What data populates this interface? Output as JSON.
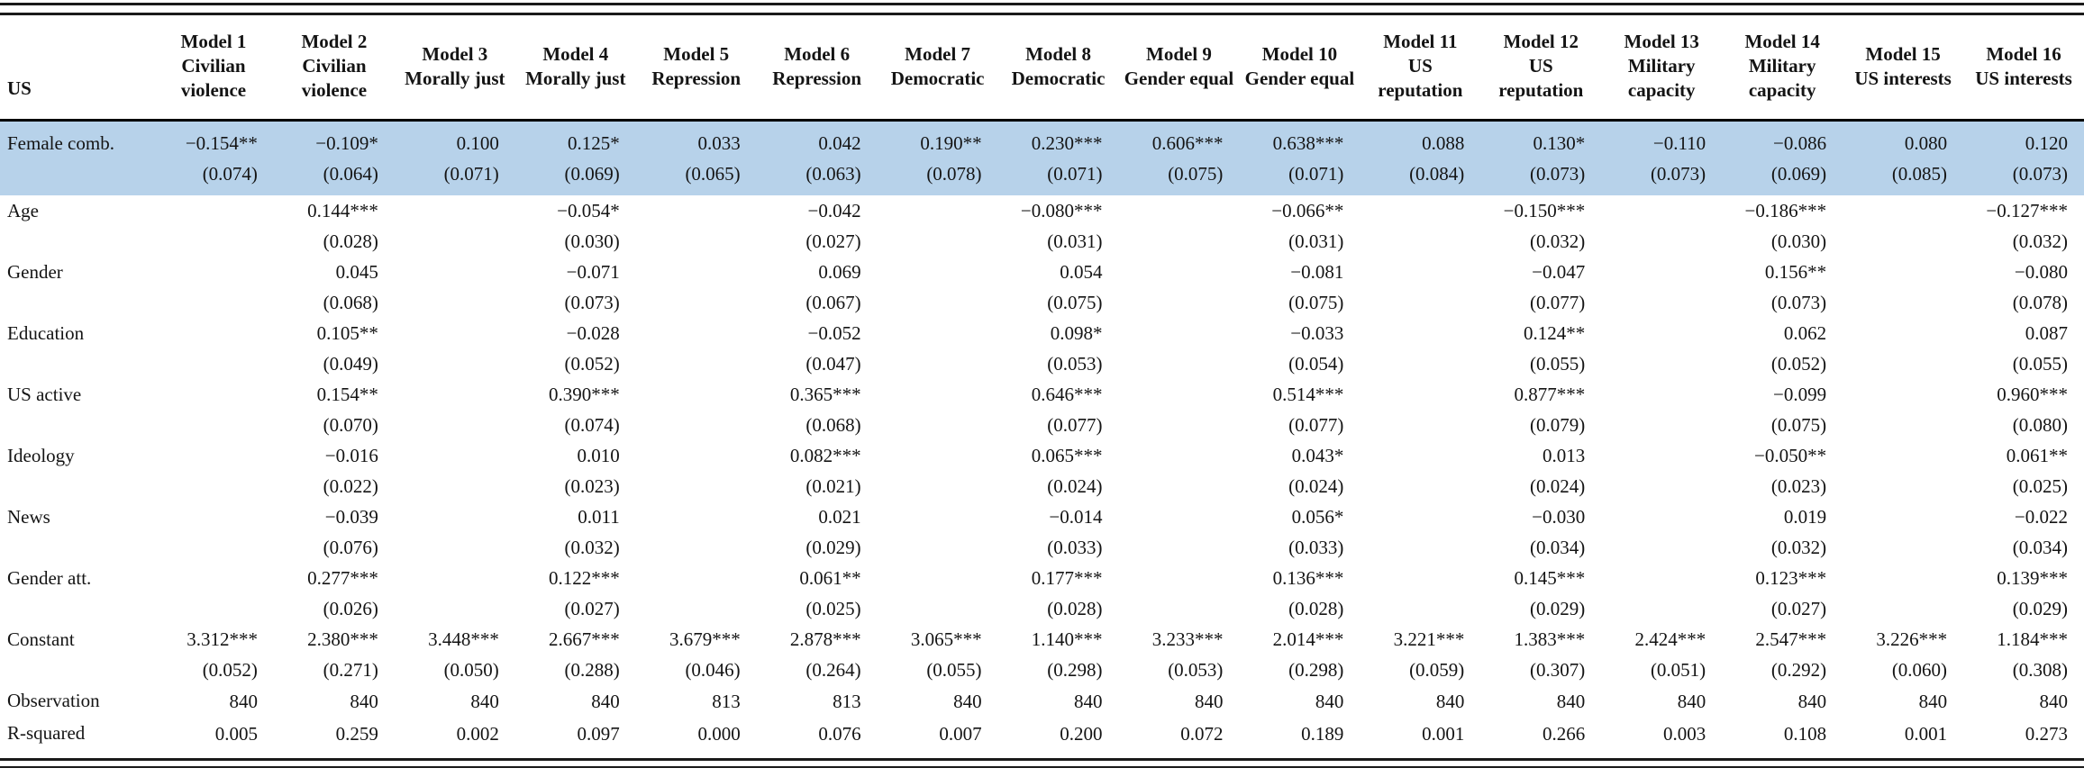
{
  "table": {
    "corner_label": "US",
    "highlight_color": "#b7d2ea",
    "columns": [
      {
        "model": "Model 1",
        "outcome": "Civilian violence"
      },
      {
        "model": "Model 2",
        "outcome": "Civilian violence"
      },
      {
        "model": "Model 3",
        "outcome": "Morally just"
      },
      {
        "model": "Model 4",
        "outcome": "Morally just"
      },
      {
        "model": "Model 5",
        "outcome": "Repression"
      },
      {
        "model": "Model 6",
        "outcome": "Repression"
      },
      {
        "model": "Model 7",
        "outcome": "Democratic"
      },
      {
        "model": "Model 8",
        "outcome": "Democratic"
      },
      {
        "model": "Model 9",
        "outcome": "Gender equal"
      },
      {
        "model": "Model 10",
        "outcome": "Gender equal"
      },
      {
        "model": "Model 11",
        "outcome": "US reputation"
      },
      {
        "model": "Model 12",
        "outcome": "US reputation"
      },
      {
        "model": "Model 13",
        "outcome": "Military capacity"
      },
      {
        "model": "Model 14",
        "outcome": "Military capacity"
      },
      {
        "model": "Model 15",
        "outcome": "US interests"
      },
      {
        "model": "Model 16",
        "outcome": "US interests"
      }
    ],
    "rows": [
      {
        "label": "Female comb.",
        "type": "coef",
        "highlight": true,
        "coefs": [
          "−0.154**",
          "−0.109*",
          "0.100",
          "0.125*",
          "0.033",
          "0.042",
          "0.190**",
          "0.230***",
          "0.606***",
          "0.638***",
          "0.088",
          "0.130*",
          "−0.110",
          "−0.086",
          "0.080",
          "0.120"
        ],
        "ses": [
          "(0.074)",
          "(0.064)",
          "(0.071)",
          "(0.069)",
          "(0.065)",
          "(0.063)",
          "(0.078)",
          "(0.071)",
          "(0.075)",
          "(0.071)",
          "(0.084)",
          "(0.073)",
          "(0.073)",
          "(0.069)",
          "(0.085)",
          "(0.073)"
        ]
      },
      {
        "label": "Age",
        "type": "coef",
        "highlight": false,
        "coefs": [
          "",
          "0.144***",
          "",
          "−0.054*",
          "",
          "−0.042",
          "",
          "−0.080***",
          "",
          "−0.066**",
          "",
          "−0.150***",
          "",
          "−0.186***",
          "",
          "−0.127***"
        ],
        "ses": [
          "",
          "(0.028)",
          "",
          "(0.030)",
          "",
          "(0.027)",
          "",
          "(0.031)",
          "",
          "(0.031)",
          "",
          "(0.032)",
          "",
          "(0.030)",
          "",
          "(0.032)"
        ]
      },
      {
        "label": "Gender",
        "type": "coef",
        "highlight": false,
        "coefs": [
          "",
          "0.045",
          "",
          "−0.071",
          "",
          "0.069",
          "",
          "0.054",
          "",
          "−0.081",
          "",
          "−0.047",
          "",
          "0.156**",
          "",
          "−0.080"
        ],
        "ses": [
          "",
          "(0.068)",
          "",
          "(0.073)",
          "",
          "(0.067)",
          "",
          "(0.075)",
          "",
          "(0.075)",
          "",
          "(0.077)",
          "",
          "(0.073)",
          "",
          "(0.078)"
        ]
      },
      {
        "label": "Education",
        "type": "coef",
        "highlight": false,
        "coefs": [
          "",
          "0.105**",
          "",
          "−0.028",
          "",
          "−0.052",
          "",
          "0.098*",
          "",
          "−0.033",
          "",
          "0.124**",
          "",
          "0.062",
          "",
          "0.087"
        ],
        "ses": [
          "",
          "(0.049)",
          "",
          "(0.052)",
          "",
          "(0.047)",
          "",
          "(0.053)",
          "",
          "(0.054)",
          "",
          "(0.055)",
          "",
          "(0.052)",
          "",
          "(0.055)"
        ]
      },
      {
        "label": "US active",
        "type": "coef",
        "highlight": false,
        "coefs": [
          "",
          "0.154**",
          "",
          "0.390***",
          "",
          "0.365***",
          "",
          "0.646***",
          "",
          "0.514***",
          "",
          "0.877***",
          "",
          "−0.099",
          "",
          "0.960***"
        ],
        "ses": [
          "",
          "(0.070)",
          "",
          "(0.074)",
          "",
          "(0.068)",
          "",
          "(0.077)",
          "",
          "(0.077)",
          "",
          "(0.079)",
          "",
          "(0.075)",
          "",
          "(0.080)"
        ]
      },
      {
        "label": "Ideology",
        "type": "coef",
        "highlight": false,
        "coefs": [
          "",
          "−0.016",
          "",
          "0.010",
          "",
          "0.082***",
          "",
          "0.065***",
          "",
          "0.043*",
          "",
          "0.013",
          "",
          "−0.050**",
          "",
          "0.061**"
        ],
        "ses": [
          "",
          "(0.022)",
          "",
          "(0.023)",
          "",
          "(0.021)",
          "",
          "(0.024)",
          "",
          "(0.024)",
          "",
          "(0.024)",
          "",
          "(0.023)",
          "",
          "(0.025)"
        ]
      },
      {
        "label": "News",
        "type": "coef",
        "highlight": false,
        "coefs": [
          "",
          "−0.039",
          "",
          "0.011",
          "",
          "0.021",
          "",
          "−0.014",
          "",
          "0.056*",
          "",
          "−0.030",
          "",
          "0.019",
          "",
          "−0.022"
        ],
        "ses": [
          "",
          "(0.076)",
          "",
          "(0.032)",
          "",
          "(0.029)",
          "",
          "(0.033)",
          "",
          "(0.033)",
          "",
          "(0.034)",
          "",
          "(0.032)",
          "",
          "(0.034)"
        ]
      },
      {
        "label": "Gender att.",
        "type": "coef",
        "highlight": false,
        "coefs": [
          "",
          "0.277***",
          "",
          "0.122***",
          "",
          "0.061**",
          "",
          "0.177***",
          "",
          "0.136***",
          "",
          "0.145***",
          "",
          "0.123***",
          "",
          "0.139***"
        ],
        "ses": [
          "",
          "(0.026)",
          "",
          "(0.027)",
          "",
          "(0.025)",
          "",
          "(0.028)",
          "",
          "(0.028)",
          "",
          "(0.029)",
          "",
          "(0.027)",
          "",
          "(0.029)"
        ]
      },
      {
        "label": "Constant",
        "type": "coef",
        "highlight": false,
        "coefs": [
          "3.312***",
          "2.380***",
          "3.448***",
          "2.667***",
          "3.679***",
          "2.878***",
          "3.065***",
          "1.140***",
          "3.233***",
          "2.014***",
          "3.221***",
          "1.383***",
          "2.424***",
          "2.547***",
          "3.226***",
          "1.184***"
        ],
        "ses": [
          "(0.052)",
          "(0.271)",
          "(0.050)",
          "(0.288)",
          "(0.046)",
          "(0.264)",
          "(0.055)",
          "(0.298)",
          "(0.053)",
          "(0.298)",
          "(0.059)",
          "(0.307)",
          "(0.051)",
          "(0.292)",
          "(0.060)",
          "(0.308)"
        ]
      },
      {
        "label": "Observation",
        "type": "single",
        "highlight": false,
        "values": [
          "840",
          "840",
          "840",
          "840",
          "813",
          "813",
          "840",
          "840",
          "840",
          "840",
          "840",
          "840",
          "840",
          "840",
          "840",
          "840"
        ]
      },
      {
        "label": "R-squared",
        "type": "single",
        "highlight": false,
        "values": [
          "0.005",
          "0.259",
          "0.002",
          "0.097",
          "0.000",
          "0.076",
          "0.007",
          "0.200",
          "0.072",
          "0.189",
          "0.001",
          "0.266",
          "0.003",
          "0.108",
          "0.001",
          "0.273"
        ]
      }
    ]
  }
}
